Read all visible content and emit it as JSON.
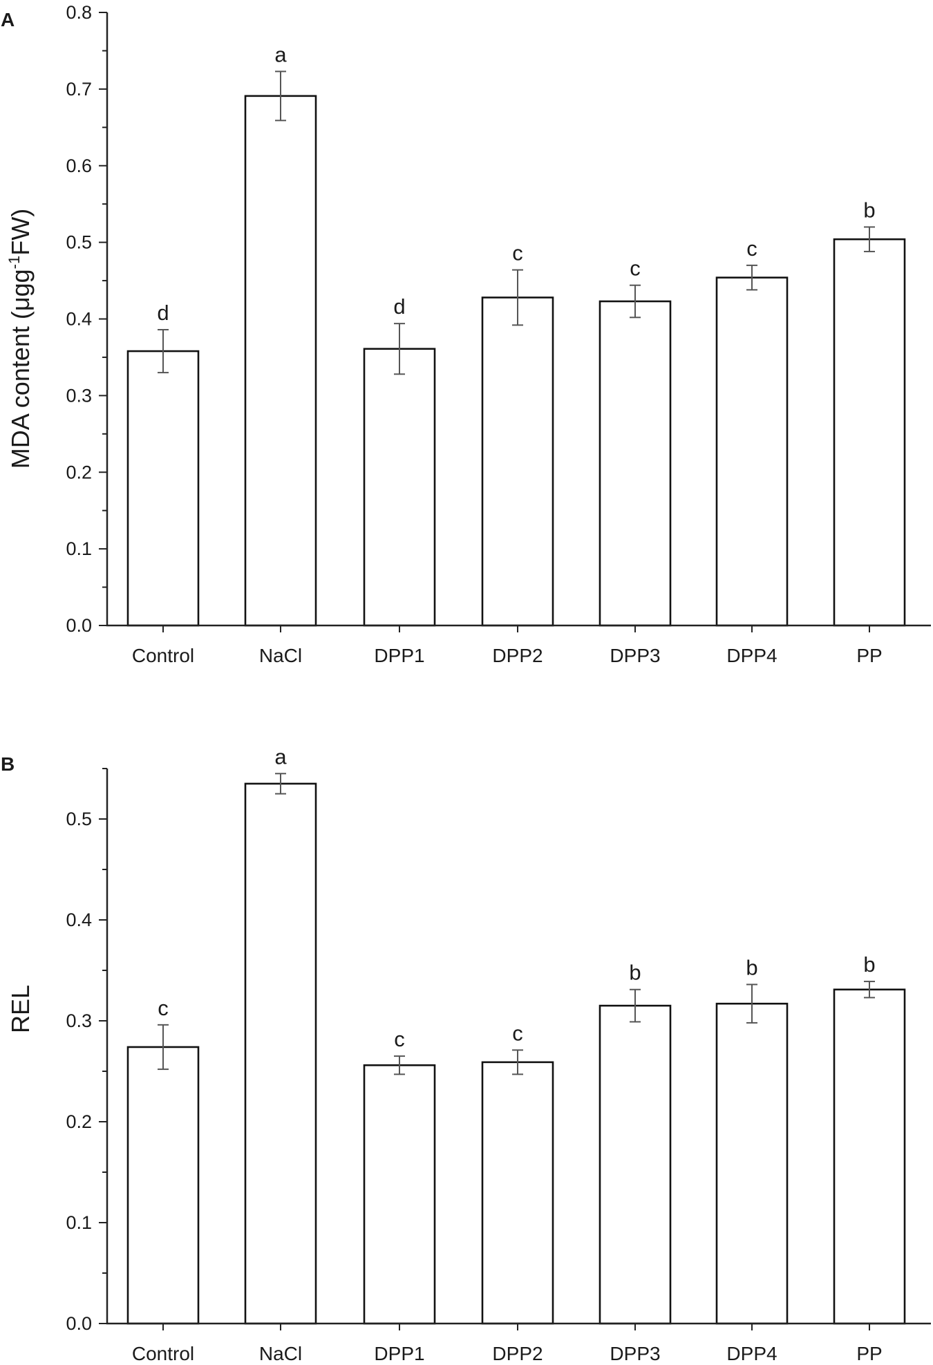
{
  "chart_data": [
    {
      "panel": "A",
      "type": "bar",
      "categories": [
        "Control",
        "NaCl",
        "DPP1",
        "DPP2",
        "DPP3",
        "DPP4",
        "PP"
      ],
      "values": [
        0.358,
        0.691,
        0.361,
        0.428,
        0.423,
        0.454,
        0.504
      ],
      "errors": [
        0.028,
        0.032,
        0.033,
        0.036,
        0.021,
        0.016,
        0.016
      ],
      "significance": [
        "d",
        "a",
        "d",
        "c",
        "c",
        "c",
        "b"
      ],
      "ylabel_prefix": "MDA content (μgg",
      "ylabel_sup": "-1",
      "ylabel_suffix": "FW)",
      "xlabel": "",
      "ylim": [
        0,
        0.8
      ],
      "yticks": [
        "0.0",
        "0.1",
        "0.2",
        "0.3",
        "0.4",
        "0.5",
        "0.6",
        "0.7",
        "0.8"
      ]
    },
    {
      "panel": "B",
      "type": "bar",
      "categories": [
        "Control",
        "NaCl",
        "DPP1",
        "DPP2",
        "DPP3",
        "DPP4",
        "PP"
      ],
      "values": [
        0.274,
        0.535,
        0.256,
        0.259,
        0.315,
        0.317,
        0.331
      ],
      "errors": [
        0.022,
        0.01,
        0.009,
        0.012,
        0.016,
        0.019,
        0.008
      ],
      "significance": [
        "c",
        "a",
        "c",
        "c",
        "b",
        "b",
        "b"
      ],
      "ylabel": "REL",
      "xlabel": "",
      "ylim": [
        0,
        0.55
      ],
      "yticks": [
        "0.0",
        "0.1",
        "0.2",
        "0.3",
        "0.4",
        "0.5"
      ]
    }
  ]
}
